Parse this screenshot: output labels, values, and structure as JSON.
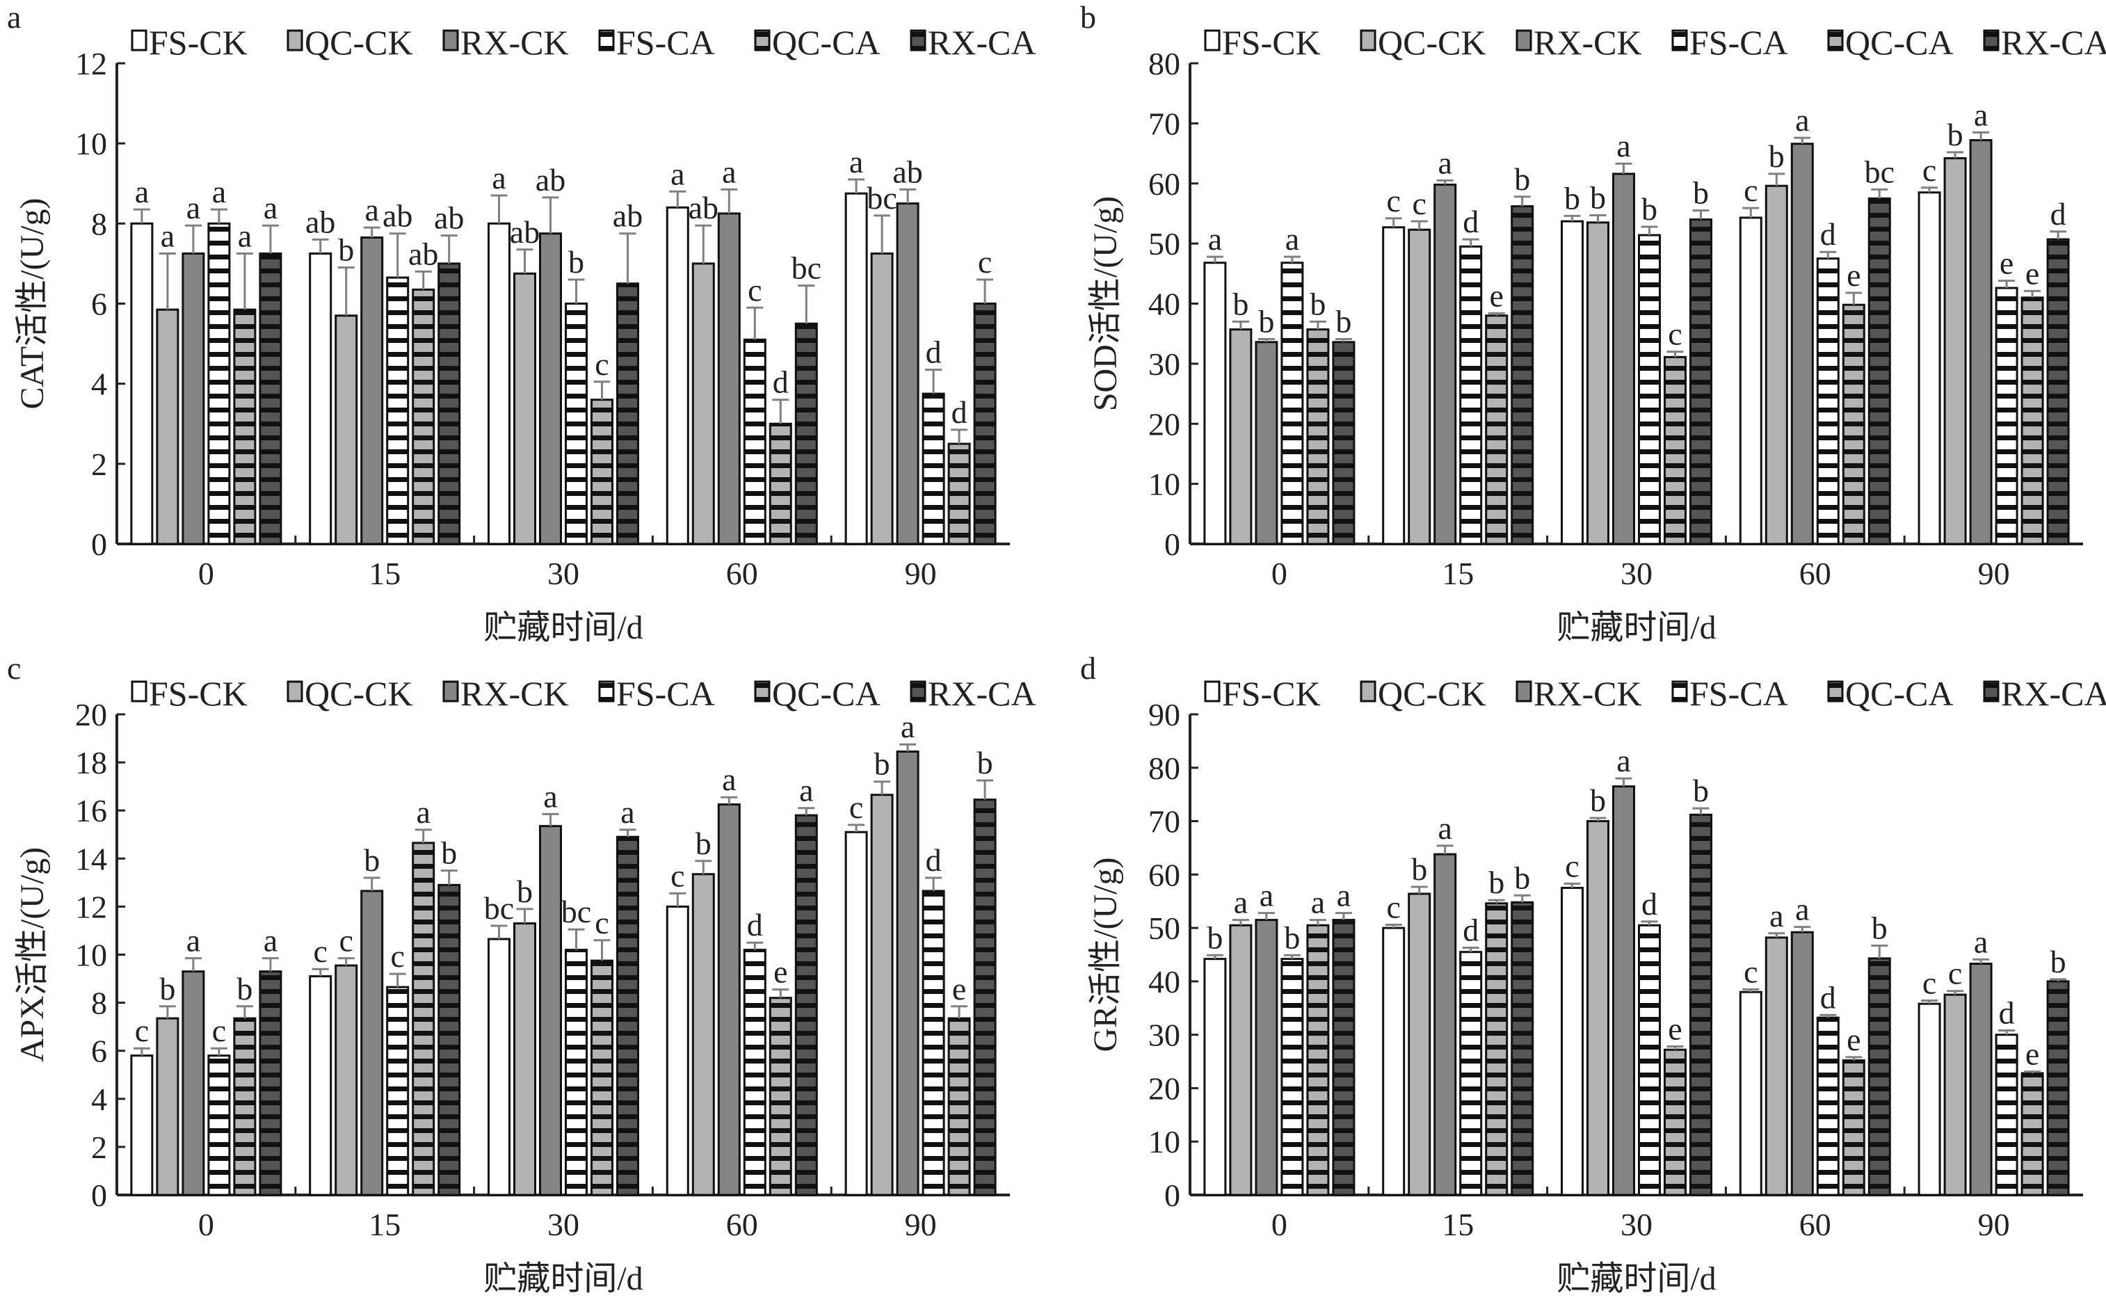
{
  "colors": {
    "FS": "#ffffff",
    "QC": "#b3b3b3",
    "RX-CK": "#858585",
    "RX-CA": "#555555",
    "stripe": "#111111",
    "error_bar": "#808080",
    "axis": "#222222"
  },
  "legend": [
    "FS-CK",
    "QC-CK",
    "RX-CK",
    "FS-CA",
    "QC-CA",
    "RX-CA"
  ],
  "chart_data": [
    {
      "panel": "a",
      "type": "bar",
      "ylabel": "CAT活性/(U/g)",
      "xlabel": "贮藏时间/d",
      "categories": [
        "0",
        "15",
        "30",
        "60",
        "90"
      ],
      "ylim": [
        0,
        12
      ],
      "yticks": [
        0,
        2,
        4,
        6,
        8,
        10,
        12
      ],
      "legend_position": "top",
      "grid": false,
      "series": [
        {
          "name": "FS-CK",
          "values": [
            8.0,
            7.25,
            8.0,
            8.4,
            8.75
          ],
          "errors": [
            0.35,
            0.35,
            0.7,
            0.4,
            0.35
          ],
          "letters": [
            "a",
            "ab",
            "a",
            "a",
            "a"
          ]
        },
        {
          "name": "QC-CK",
          "values": [
            5.85,
            5.7,
            6.75,
            7.0,
            7.25
          ],
          "errors": [
            1.4,
            1.2,
            0.6,
            0.95,
            0.95
          ],
          "letters": [
            "a",
            "b",
            "ab",
            "ab",
            "bc"
          ]
        },
        {
          "name": "RX-CK",
          "values": [
            7.25,
            7.65,
            7.75,
            8.25,
            8.5
          ],
          "errors": [
            0.7,
            0.25,
            0.9,
            0.6,
            0.35
          ],
          "letters": [
            "a",
            "a",
            "ab",
            "a",
            "ab"
          ]
        },
        {
          "name": "FS-CA",
          "values": [
            8.0,
            6.65,
            6.0,
            5.1,
            3.75
          ],
          "errors": [
            0.35,
            1.1,
            0.6,
            0.8,
            0.6
          ],
          "letters": [
            "a",
            "ab",
            "b",
            "c",
            "d"
          ]
        },
        {
          "name": "QC-CA",
          "values": [
            5.85,
            6.35,
            3.6,
            3.0,
            2.5
          ],
          "errors": [
            1.4,
            0.45,
            0.45,
            0.6,
            0.35
          ],
          "letters": [
            "a",
            "ab",
            "c",
            "d",
            "d"
          ]
        },
        {
          "name": "RX-CA",
          "values": [
            7.25,
            7.0,
            6.5,
            5.5,
            6.0
          ],
          "errors": [
            0.7,
            0.7,
            1.25,
            0.95,
            0.6
          ],
          "letters": [
            "a",
            "ab",
            "ab",
            "bc",
            "c"
          ]
        }
      ]
    },
    {
      "panel": "b",
      "type": "bar",
      "ylabel": "SOD活性/(U/g)",
      "xlabel": "贮藏时间/d",
      "categories": [
        "0",
        "15",
        "30",
        "60",
        "90"
      ],
      "ylim": [
        0,
        80
      ],
      "yticks": [
        0,
        10,
        20,
        30,
        40,
        50,
        60,
        70,
        80
      ],
      "legend_position": "top",
      "grid": false,
      "series": [
        {
          "name": "FS-CK",
          "values": [
            46.8,
            52.7,
            53.7,
            54.3,
            58.5
          ],
          "errors": [
            1.0,
            1.5,
            0.9,
            1.6,
            0.8
          ],
          "letters": [
            "a",
            "c",
            "b",
            "c",
            "c"
          ]
        },
        {
          "name": "QC-CK",
          "values": [
            35.7,
            52.3,
            53.5,
            59.6,
            64.2
          ],
          "errors": [
            1.3,
            1.4,
            1.2,
            2.0,
            1.0
          ],
          "letters": [
            "b",
            "c",
            "b",
            "b",
            "b"
          ]
        },
        {
          "name": "RX-CK",
          "values": [
            33.6,
            59.8,
            61.6,
            66.6,
            67.2
          ],
          "errors": [
            0.5,
            0.7,
            1.7,
            1.0,
            1.3
          ],
          "letters": [
            "b",
            "a",
            "a",
            "a",
            "a"
          ]
        },
        {
          "name": "FS-CA",
          "values": [
            46.8,
            49.5,
            51.4,
            47.5,
            42.6
          ],
          "errors": [
            1.0,
            1.2,
            1.4,
            1.1,
            1.2
          ],
          "letters": [
            "a",
            "d",
            "b",
            "d",
            "e"
          ]
        },
        {
          "name": "QC-CA",
          "values": [
            35.7,
            38.0,
            31.1,
            39.8,
            41.0
          ],
          "errors": [
            1.3,
            0.4,
            0.9,
            2.0,
            1.1
          ],
          "letters": [
            "b",
            "e",
            "c",
            "e",
            "e"
          ]
        },
        {
          "name": "RX-CA",
          "values": [
            33.6,
            56.2,
            54.0,
            57.5,
            50.7
          ],
          "errors": [
            0.5,
            1.6,
            1.5,
            1.5,
            1.3
          ],
          "letters": [
            "b",
            "b",
            "b",
            "bc",
            "d"
          ]
        }
      ]
    },
    {
      "panel": "c",
      "type": "bar",
      "ylabel": "APX活性/(U/g)",
      "xlabel": "贮藏时间/d",
      "categories": [
        "0",
        "15",
        "30",
        "60",
        "90"
      ],
      "ylim": [
        0,
        20
      ],
      "yticks": [
        0,
        2,
        4,
        6,
        8,
        10,
        12,
        14,
        16,
        18,
        20
      ],
      "legend_position": "top",
      "grid": false,
      "series": [
        {
          "name": "FS-CK",
          "values": [
            5.8,
            9.1,
            10.65,
            12.0,
            15.1
          ],
          "errors": [
            0.3,
            0.3,
            0.55,
            0.55,
            0.3
          ],
          "letters": [
            "c",
            "c",
            "bc",
            "c",
            "c"
          ]
        },
        {
          "name": "QC-CK",
          "values": [
            7.35,
            9.55,
            11.3,
            13.35,
            16.65
          ],
          "errors": [
            0.5,
            0.3,
            0.6,
            0.55,
            0.55
          ],
          "letters": [
            "b",
            "c",
            "b",
            "b",
            "b"
          ]
        },
        {
          "name": "RX-CK",
          "values": [
            9.3,
            12.65,
            15.35,
            16.25,
            18.45
          ],
          "errors": [
            0.55,
            0.55,
            0.5,
            0.3,
            0.3
          ],
          "letters": [
            "a",
            "b",
            "a",
            "a",
            "a"
          ]
        },
        {
          "name": "FS-CA",
          "values": [
            5.8,
            8.65,
            10.2,
            10.2,
            12.65
          ],
          "errors": [
            0.3,
            0.55,
            0.85,
            0.3,
            0.55
          ],
          "letters": [
            "c",
            "c",
            "bc",
            "d",
            "d"
          ]
        },
        {
          "name": "QC-CA",
          "values": [
            7.35,
            14.65,
            9.75,
            8.2,
            7.35
          ],
          "errors": [
            0.5,
            0.55,
            0.85,
            0.35,
            0.5
          ],
          "letters": [
            "b",
            "a",
            "c",
            "e",
            "e"
          ]
        },
        {
          "name": "RX-CA",
          "values": [
            9.3,
            12.9,
            14.9,
            15.8,
            16.45
          ],
          "errors": [
            0.55,
            0.6,
            0.3,
            0.3,
            0.8
          ],
          "letters": [
            "a",
            "b",
            "a",
            "a",
            "b"
          ]
        }
      ]
    },
    {
      "panel": "d",
      "type": "bar",
      "ylabel": "GR活性/(U/g)",
      "xlabel": "贮藏时间/d",
      "categories": [
        "0",
        "15",
        "30",
        "60",
        "90"
      ],
      "ylim": [
        0,
        90
      ],
      "yticks": [
        0,
        10,
        20,
        30,
        40,
        50,
        60,
        70,
        80,
        90
      ],
      "legend_position": "top",
      "grid": false,
      "series": [
        {
          "name": "FS-CK",
          "values": [
            44.2,
            50.0,
            57.5,
            38.0,
            35.8
          ],
          "errors": [
            0.7,
            0.6,
            0.8,
            0.5,
            0.6
          ],
          "letters": [
            "b",
            "c",
            "c",
            "c",
            "c"
          ]
        },
        {
          "name": "QC-CK",
          "values": [
            50.5,
            56.4,
            70.0,
            48.2,
            37.5
          ],
          "errors": [
            1.0,
            1.3,
            0.6,
            0.8,
            0.7
          ],
          "letters": [
            "a",
            "b",
            "b",
            "a",
            "c"
          ]
        },
        {
          "name": "RX-CK",
          "values": [
            51.5,
            63.8,
            76.5,
            49.2,
            43.3
          ],
          "errors": [
            1.3,
            1.6,
            1.5,
            1.0,
            0.8
          ],
          "letters": [
            "a",
            "a",
            "a",
            "a",
            "a"
          ]
        },
        {
          "name": "FS-CA",
          "values": [
            44.2,
            45.5,
            50.5,
            33.2,
            30.0
          ],
          "errors": [
            0.7,
            0.8,
            0.7,
            0.5,
            0.8
          ],
          "letters": [
            "b",
            "d",
            "d",
            "d",
            "d"
          ]
        },
        {
          "name": "QC-CA",
          "values": [
            50.5,
            54.6,
            27.2,
            25.2,
            22.8
          ],
          "errors": [
            1.0,
            0.6,
            0.6,
            0.6,
            0.3
          ],
          "letters": [
            "a",
            "b",
            "e",
            "e",
            "e"
          ]
        },
        {
          "name": "RX-CA",
          "values": [
            51.5,
            54.8,
            71.2,
            44.3,
            40.0
          ],
          "errors": [
            1.3,
            1.3,
            1.2,
            2.4,
            0.4
          ],
          "letters": [
            "a",
            "b",
            "b",
            "b",
            "b"
          ]
        }
      ]
    }
  ]
}
